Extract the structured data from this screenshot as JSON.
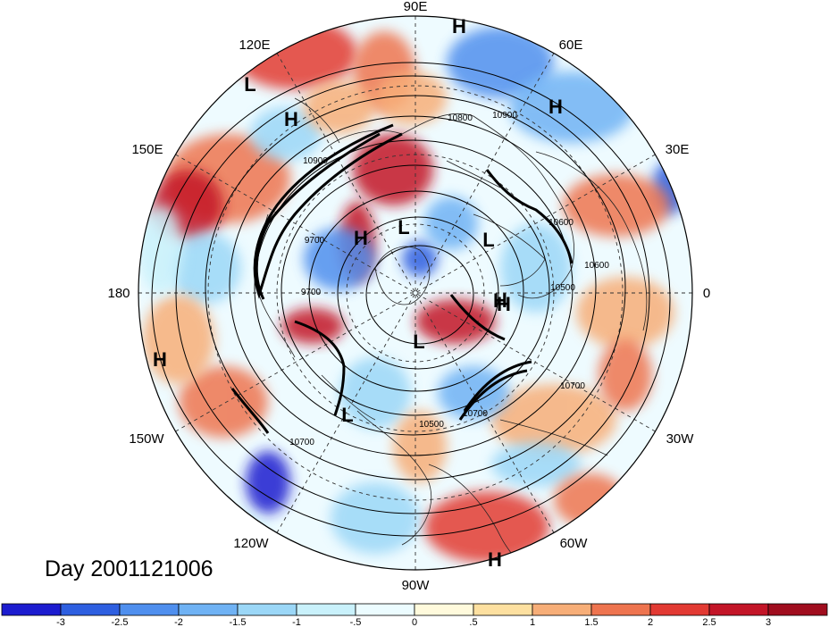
{
  "title": "Day 2001121006",
  "longitude_labels": {
    "top": "90E",
    "upper_left": "120E",
    "upper_right": "60E",
    "mid_left_upper": "150E",
    "mid_right_upper": "30E",
    "left": "180",
    "right": "0",
    "mid_left_lower": "150W",
    "mid_right_lower": "30W",
    "lower_left": "120W",
    "lower_right": "60W",
    "bottom": "90W"
  },
  "pressure_centers": [
    "H",
    "L",
    "H",
    "H",
    "H",
    "L",
    "H",
    "L",
    "H",
    "L",
    "L",
    "H",
    "H"
  ],
  "contour_labels": [
    "10800",
    "10900",
    "10900",
    "9700",
    "9700",
    "10600",
    "10600",
    "10500",
    "10700",
    "10500",
    "10700",
    "10700"
  ],
  "colorbar": {
    "ticks": [
      "-3",
      "-2.5",
      "-2",
      "-1.5",
      "-1",
      "-.5",
      "0",
      ".5",
      "1",
      "1.5",
      "2",
      "2.5",
      "3"
    ],
    "colors": [
      "#1c1ccf",
      "#2e5fe0",
      "#4f8fee",
      "#6fb2f4",
      "#9bd7f7",
      "#c9f1fb",
      "#ecfcff",
      "#fffadc",
      "#fde0a0",
      "#f7ae78",
      "#ee744f",
      "#e23a33",
      "#c31528",
      "#a00d1e"
    ]
  }
}
